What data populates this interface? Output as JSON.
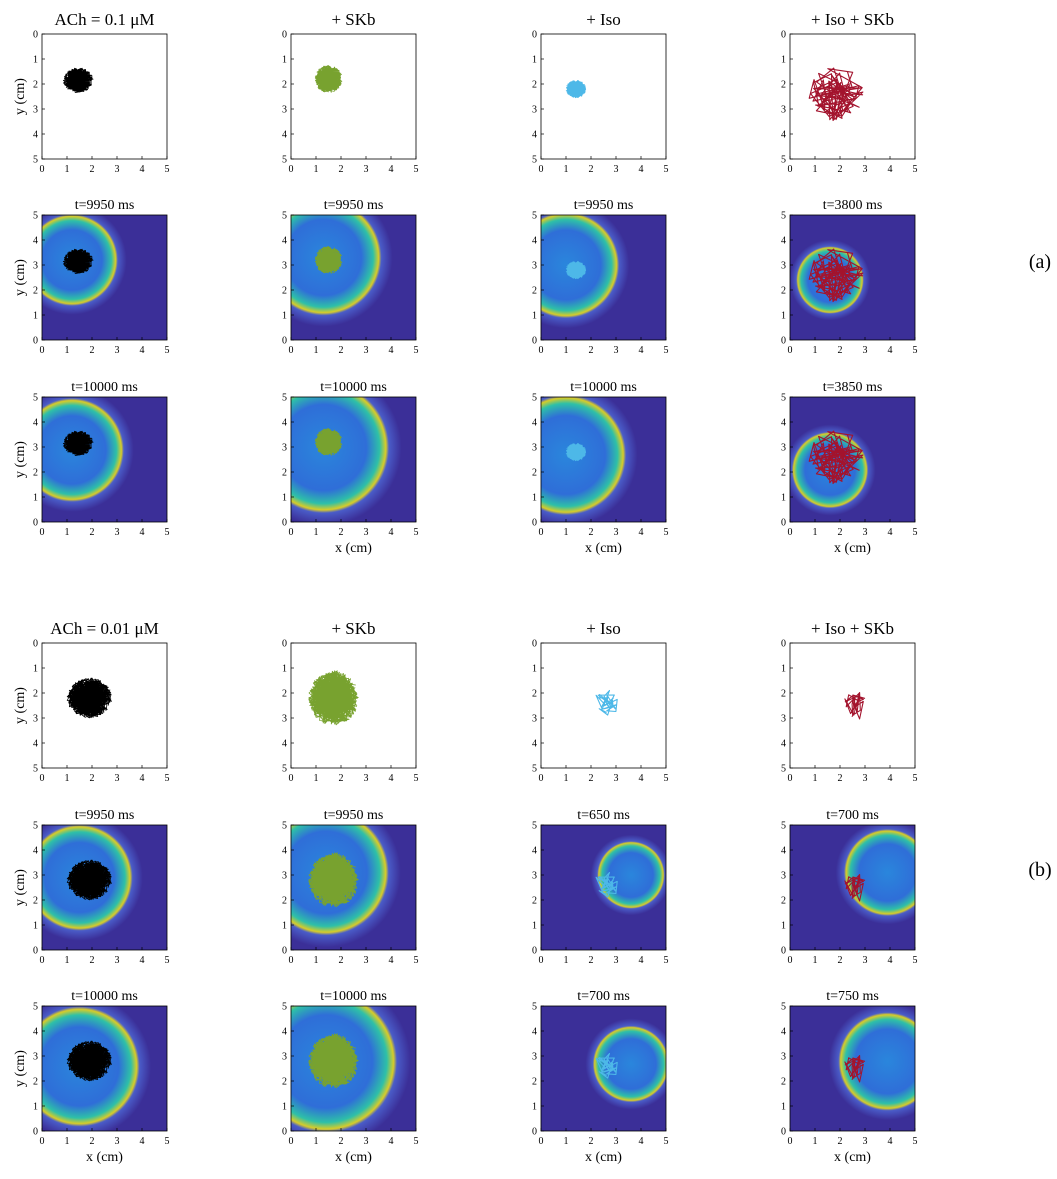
{
  "figure": {
    "groups": [
      {
        "label": "(a)",
        "columns": [
          {
            "title": "ACh = 0.1 μM",
            "snapshots": [
              "t=9950 ms",
              "t=10000 ms"
            ]
          },
          {
            "title": "+ SKb",
            "snapshots": [
              "t=9950 ms",
              "t=10000 ms"
            ]
          },
          {
            "title": "+ Iso",
            "snapshots": [
              "t=9950 ms",
              "t=10000 ms"
            ]
          },
          {
            "title": "+ Iso + SKb",
            "snapshots": [
              "t=3800 ms",
              "t=3850 ms"
            ]
          }
        ]
      },
      {
        "label": "(b)",
        "columns": [
          {
            "title": "ACh = 0.01 μM",
            "snapshots": [
              "t=9950 ms",
              "t=10000 ms"
            ]
          },
          {
            "title": "+ SKb",
            "snapshots": [
              "t=9950 ms",
              "t=10000 ms"
            ]
          },
          {
            "title": "+ Iso",
            "snapshots": [
              "t=650 ms",
              "t=700 ms"
            ]
          },
          {
            "title": "+ Iso + SKb",
            "snapshots": [
              "t=700 ms",
              "t=750 ms"
            ]
          }
        ]
      }
    ],
    "ticks": [
      "0",
      "1",
      "2",
      "3",
      "4",
      "5"
    ],
    "y_label": "y (cm)",
    "x_label": "x (cm)"
  }
}
